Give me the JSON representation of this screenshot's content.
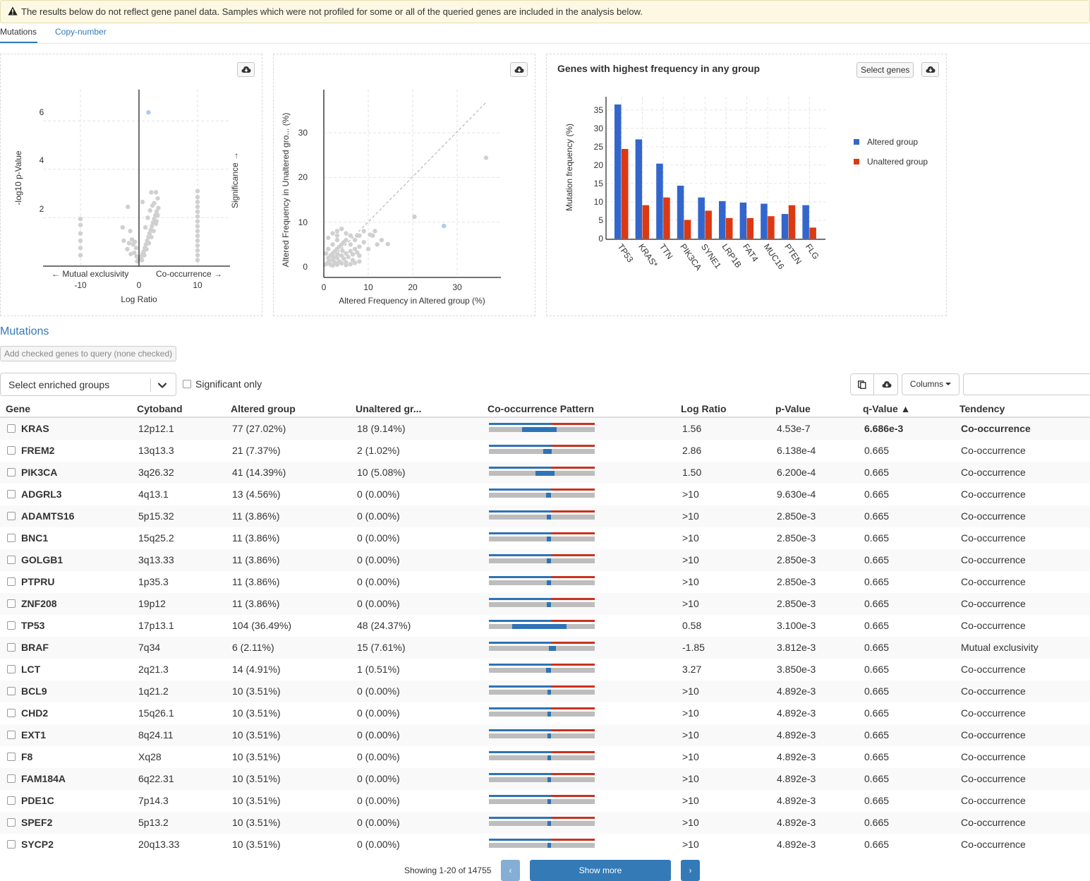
{
  "warning": {
    "text": "The results below do not reflect gene panel data. Samples which were not profiled for some or all of the queried genes are included in the analysis below."
  },
  "tabs": [
    {
      "label": "Mutations",
      "active": true
    },
    {
      "label": "Copy-number",
      "active": false
    }
  ],
  "volcano": {
    "ylabel": "-log10 p-Value",
    "y_ticks": [
      "6",
      "4",
      "2"
    ],
    "x_ticks": [
      "-10",
      "0",
      "10"
    ],
    "xlabel": "Log Ratio",
    "left_annotation": "← Mutual exclusivity",
    "right_annotation": "Co-occurrence →",
    "right_axis_label": "Significance →"
  },
  "scatter": {
    "ylabel": "Altered Frequency in Unaltered gro... (%)",
    "xlabel": "Altered Frequency in Altered group (%)",
    "x_ticks": [
      "0",
      "10",
      "20",
      "30"
    ],
    "y_ticks": [
      "30",
      "20",
      "10",
      "0"
    ]
  },
  "bar_panel": {
    "title": "Genes with highest frequency in any group",
    "select_genes_label": "Select genes"
  },
  "chart_data": [
    {
      "type": "bar",
      "title": "Genes with highest frequency in any group",
      "xlabel": "",
      "ylabel": "Mutation frequency (%)",
      "categories": [
        "TP53",
        "KRAS*",
        "TTN",
        "PIK3CA",
        "SYNE1",
        "LRP1B",
        "FAT4",
        "MUC16",
        "PTEN",
        "FLG"
      ],
      "series": [
        {
          "name": "Altered group",
          "color": "#3366cc",
          "values": [
            36.5,
            27.0,
            20.4,
            14.4,
            11.2,
            10.2,
            9.8,
            9.5,
            6.7,
            9.1
          ]
        },
        {
          "name": "Unaltered group",
          "color": "#dc3912",
          "values": [
            24.4,
            9.1,
            11.2,
            5.1,
            7.6,
            5.6,
            5.6,
            6.1,
            9.1,
            3.0
          ]
        }
      ],
      "y_ticks": [
        0,
        5,
        10,
        15,
        20,
        25,
        30,
        35
      ],
      "ylim": [
        0,
        36.5
      ],
      "legend_position": "right"
    },
    {
      "type": "scatter",
      "ylabel": "-log10 p-Value",
      "xlabel": "Log Ratio",
      "xlim": [
        -20,
        12
      ],
      "ylim": [
        0,
        7
      ],
      "highlight": [
        {
          "x": 1.56,
          "y": 6.35
        }
      ],
      "points": [
        [
          -10,
          1.95
        ],
        [
          -10,
          1.7
        ],
        [
          -10,
          1.35
        ],
        [
          -10,
          1.05
        ],
        [
          -10,
          0.75
        ],
        [
          -10,
          0.45
        ],
        [
          10,
          3.1
        ],
        [
          10,
          2.85
        ],
        [
          10,
          2.65
        ],
        [
          10,
          2.45
        ],
        [
          10,
          2.25
        ],
        [
          10,
          2.05
        ],
        [
          10,
          1.85
        ],
        [
          10,
          1.65
        ],
        [
          10,
          1.45
        ],
        [
          10,
          1.25
        ],
        [
          10,
          1.05
        ],
        [
          10,
          0.85
        ],
        [
          10,
          0.65
        ],
        [
          10,
          0.45
        ],
        [
          10,
          0.25
        ],
        [
          -1.9,
          2.45
        ],
        [
          -1.5,
          1.45
        ],
        [
          -2.8,
          1.6
        ],
        [
          -2.6,
          1.05
        ],
        [
          -1.7,
          0.95
        ],
        [
          -1.2,
          1.1
        ],
        [
          -1.0,
          0.9
        ],
        [
          -0.7,
          1.0
        ],
        [
          -0.5,
          0.75
        ],
        [
          -0.8,
          0.55
        ],
        [
          -0.4,
          0.4
        ],
        [
          -1.4,
          0.5
        ],
        [
          -2.0,
          0.7
        ],
        [
          0.2,
          0.3
        ],
        [
          0.4,
          0.4
        ],
        [
          0.6,
          0.5
        ],
        [
          0.8,
          0.6
        ],
        [
          1.0,
          0.75
        ],
        [
          1.2,
          0.9
        ],
        [
          1.4,
          1.05
        ],
        [
          1.6,
          1.2
        ],
        [
          1.8,
          1.35
        ],
        [
          2.0,
          1.5
        ],
        [
          2.2,
          1.65
        ],
        [
          2.4,
          1.8
        ],
        [
          2.6,
          1.95
        ],
        [
          2.8,
          2.1
        ],
        [
          3.0,
          2.25
        ],
        [
          3.3,
          2.4
        ],
        [
          3.2,
          2.1
        ],
        [
          2.9,
          1.75
        ],
        [
          2.5,
          1.45
        ],
        [
          2.1,
          1.2
        ],
        [
          1.7,
          0.95
        ],
        [
          1.3,
          0.7
        ],
        [
          0.9,
          0.45
        ],
        [
          0.5,
          0.25
        ],
        [
          -0.3,
          0.2
        ],
        [
          -0.1,
          0.25
        ],
        [
          0.6,
          2.65
        ],
        [
          2.1,
          3.05
        ],
        [
          2.9,
          3.05
        ],
        [
          3.2,
          2.8
        ],
        [
          1.5,
          2.0
        ],
        [
          2.6,
          2.6
        ],
        [
          1.9,
          2.3
        ],
        [
          1.1,
          1.6
        ],
        [
          3.0,
          1.85
        ],
        [
          2.3,
          2.5
        ]
      ]
    },
    {
      "type": "scatter",
      "xlabel": "Altered Frequency in Altered group (%)",
      "ylabel": "Altered Frequency in Unaltered gro... (%)",
      "xlim": [
        0,
        40
      ],
      "ylim": [
        0,
        39
      ],
      "highlight": [
        {
          "x": 27.02,
          "y": 9.14
        }
      ],
      "points": [
        [
          0.5,
          0.6
        ],
        [
          1,
          1
        ],
        [
          1.5,
          0.5
        ],
        [
          2,
          1.5
        ],
        [
          2.5,
          1
        ],
        [
          3,
          2
        ],
        [
          3.5,
          1.2
        ],
        [
          4,
          2.5
        ],
        [
          4.5,
          1.8
        ],
        [
          5,
          3
        ],
        [
          5.5,
          2.2
        ],
        [
          6,
          3.5
        ],
        [
          6.5,
          2.8
        ],
        [
          7,
          4
        ],
        [
          7.5,
          3.2
        ],
        [
          8,
          4.5
        ],
        [
          2,
          3
        ],
        [
          3,
          4
        ],
        [
          4,
          5
        ],
        [
          5,
          6
        ],
        [
          1.5,
          2.5
        ],
        [
          2.5,
          3.5
        ],
        [
          3.5,
          4.5
        ],
        [
          4.5,
          5.5
        ],
        [
          6,
          5
        ],
        [
          7,
          6
        ],
        [
          1,
          4
        ],
        [
          2,
          5
        ],
        [
          3,
          6
        ],
        [
          6.5,
          1.5
        ],
        [
          5,
          1
        ],
        [
          8,
          2.5
        ],
        [
          9,
          5.5
        ],
        [
          10,
          4
        ],
        [
          11,
          7
        ],
        [
          9,
          8
        ],
        [
          7.5,
          7
        ],
        [
          1,
          6.5
        ],
        [
          2,
          7.5
        ],
        [
          3,
          8
        ],
        [
          4,
          8.5
        ],
        [
          2,
          0.3
        ],
        [
          3,
          0.5
        ],
        [
          4,
          0.8
        ],
        [
          5,
          0.4
        ],
        [
          6,
          0.6
        ],
        [
          7,
          0.9
        ],
        [
          8,
          1.2
        ],
        [
          10.4,
          7.2
        ],
        [
          11.5,
          8
        ],
        [
          12,
          5
        ],
        [
          13,
          6
        ],
        [
          14.4,
          5.1
        ],
        [
          20.4,
          11.2
        ],
        [
          36.5,
          24.4
        ],
        [
          1,
          2
        ],
        [
          0.5,
          3
        ],
        [
          6,
          7
        ],
        [
          5,
          7.5
        ],
        [
          3,
          7
        ],
        [
          8,
          7
        ],
        [
          1.2,
          1.4
        ],
        [
          2.2,
          2.1
        ],
        [
          3.1,
          2.8
        ],
        [
          4.2,
          3.6
        ]
      ]
    }
  ],
  "table_section": {
    "title": "Mutations",
    "add_button_label": "Add checked genes to query (none checked)",
    "select_placeholder": "Select enriched groups",
    "significant_label": "Significant only",
    "columns_label": "Columns",
    "search_placeholder": ""
  },
  "table": {
    "headers": [
      "Gene",
      "Cytoband",
      "Altered group",
      "Unaltered gr...",
      "Co-occurrence Pattern",
      "Log Ratio",
      "p-Value",
      "q-Value ▲",
      "Tendency"
    ],
    "rows": [
      {
        "gene": "KRAS",
        "cytoband": "12p12.1",
        "altered": "77 (27.02%)",
        "unaltered": "18 (9.14%)",
        "log_ratio": "1.56",
        "p_value": "4.53e-7",
        "q_value": "6.686e-3",
        "tendency": "Co-occurrence",
        "significant": true,
        "pattern": {
          "altered": 0.27,
          "unaltered": 0.09
        }
      },
      {
        "gene": "FREM2",
        "cytoband": "13q13.3",
        "altered": "21 (7.37%)",
        "unaltered": "2 (1.02%)",
        "log_ratio": "2.86",
        "p_value": "6.138e-4",
        "q_value": "0.665",
        "tendency": "Co-occurrence",
        "significant": false,
        "pattern": {
          "altered": 0.074,
          "unaltered": 0.01
        }
      },
      {
        "gene": "PIK3CA",
        "cytoband": "3q26.32",
        "altered": "41 (14.39%)",
        "unaltered": "10 (5.08%)",
        "log_ratio": "1.50",
        "p_value": "6.200e-4",
        "q_value": "0.665",
        "tendency": "Co-occurrence",
        "significant": false,
        "pattern": {
          "altered": 0.144,
          "unaltered": 0.051
        }
      },
      {
        "gene": "ADGRL3",
        "cytoband": "4q13.1",
        "altered": "13 (4.56%)",
        "unaltered": "0 (0.00%)",
        "log_ratio": ">10",
        "p_value": "9.630e-4",
        "q_value": "0.665",
        "tendency": "Co-occurrence",
        "significant": false,
        "pattern": {
          "altered": 0.046,
          "unaltered": 0
        }
      },
      {
        "gene": "ADAMTS16",
        "cytoband": "5p15.32",
        "altered": "11 (3.86%)",
        "unaltered": "0 (0.00%)",
        "log_ratio": ">10",
        "p_value": "2.850e-3",
        "q_value": "0.665",
        "tendency": "Co-occurrence",
        "significant": false,
        "pattern": {
          "altered": 0.039,
          "unaltered": 0
        }
      },
      {
        "gene": "BNC1",
        "cytoband": "15q25.2",
        "altered": "11 (3.86%)",
        "unaltered": "0 (0.00%)",
        "log_ratio": ">10",
        "p_value": "2.850e-3",
        "q_value": "0.665",
        "tendency": "Co-occurrence",
        "significant": false,
        "pattern": {
          "altered": 0.039,
          "unaltered": 0
        }
      },
      {
        "gene": "GOLGB1",
        "cytoband": "3q13.33",
        "altered": "11 (3.86%)",
        "unaltered": "0 (0.00%)",
        "log_ratio": ">10",
        "p_value": "2.850e-3",
        "q_value": "0.665",
        "tendency": "Co-occurrence",
        "significant": false,
        "pattern": {
          "altered": 0.039,
          "unaltered": 0
        }
      },
      {
        "gene": "PTPRU",
        "cytoband": "1p35.3",
        "altered": "11 (3.86%)",
        "unaltered": "0 (0.00%)",
        "log_ratio": ">10",
        "p_value": "2.850e-3",
        "q_value": "0.665",
        "tendency": "Co-occurrence",
        "significant": false,
        "pattern": {
          "altered": 0.039,
          "unaltered": 0
        }
      },
      {
        "gene": "ZNF208",
        "cytoband": "19p12",
        "altered": "11 (3.86%)",
        "unaltered": "0 (0.00%)",
        "log_ratio": ">10",
        "p_value": "2.850e-3",
        "q_value": "0.665",
        "tendency": "Co-occurrence",
        "significant": false,
        "pattern": {
          "altered": 0.039,
          "unaltered": 0
        }
      },
      {
        "gene": "TP53",
        "cytoband": "17p13.1",
        "altered": "104 (36.49%)",
        "unaltered": "48 (24.37%)",
        "log_ratio": "0.58",
        "p_value": "3.100e-3",
        "q_value": "0.665",
        "tendency": "Co-occurrence",
        "significant": false,
        "pattern": {
          "altered": 0.365,
          "unaltered": 0.244
        }
      },
      {
        "gene": "BRAF",
        "cytoband": "7q34",
        "altered": "6 (2.11%)",
        "unaltered": "15 (7.61%)",
        "log_ratio": "-1.85",
        "p_value": "3.812e-3",
        "q_value": "0.665",
        "tendency": "Mutual exclusivity",
        "significant": false,
        "pattern": {
          "altered": 0.021,
          "unaltered": 0.076
        }
      },
      {
        "gene": "LCT",
        "cytoband": "2q21.3",
        "altered": "14 (4.91%)",
        "unaltered": "1 (0.51%)",
        "log_ratio": "3.27",
        "p_value": "3.850e-3",
        "q_value": "0.665",
        "tendency": "Co-occurrence",
        "significant": false,
        "pattern": {
          "altered": 0.049,
          "unaltered": 0.005
        }
      },
      {
        "gene": "BCL9",
        "cytoband": "1q21.2",
        "altered": "10 (3.51%)",
        "unaltered": "0 (0.00%)",
        "log_ratio": ">10",
        "p_value": "4.892e-3",
        "q_value": "0.665",
        "tendency": "Co-occurrence",
        "significant": false,
        "pattern": {
          "altered": 0.035,
          "unaltered": 0
        }
      },
      {
        "gene": "CHD2",
        "cytoband": "15q26.1",
        "altered": "10 (3.51%)",
        "unaltered": "0 (0.00%)",
        "log_ratio": ">10",
        "p_value": "4.892e-3",
        "q_value": "0.665",
        "tendency": "Co-occurrence",
        "significant": false,
        "pattern": {
          "altered": 0.035,
          "unaltered": 0
        }
      },
      {
        "gene": "EXT1",
        "cytoband": "8q24.11",
        "altered": "10 (3.51%)",
        "unaltered": "0 (0.00%)",
        "log_ratio": ">10",
        "p_value": "4.892e-3",
        "q_value": "0.665",
        "tendency": "Co-occurrence",
        "significant": false,
        "pattern": {
          "altered": 0.035,
          "unaltered": 0
        }
      },
      {
        "gene": "F8",
        "cytoband": "Xq28",
        "altered": "10 (3.51%)",
        "unaltered": "0 (0.00%)",
        "log_ratio": ">10",
        "p_value": "4.892e-3",
        "q_value": "0.665",
        "tendency": "Co-occurrence",
        "significant": false,
        "pattern": {
          "altered": 0.035,
          "unaltered": 0
        }
      },
      {
        "gene": "FAM184A",
        "cytoband": "6q22.31",
        "altered": "10 (3.51%)",
        "unaltered": "0 (0.00%)",
        "log_ratio": ">10",
        "p_value": "4.892e-3",
        "q_value": "0.665",
        "tendency": "Co-occurrence",
        "significant": false,
        "pattern": {
          "altered": 0.035,
          "unaltered": 0
        }
      },
      {
        "gene": "PDE1C",
        "cytoband": "7p14.3",
        "altered": "10 (3.51%)",
        "unaltered": "0 (0.00%)",
        "log_ratio": ">10",
        "p_value": "4.892e-3",
        "q_value": "0.665",
        "tendency": "Co-occurrence",
        "significant": false,
        "pattern": {
          "altered": 0.035,
          "unaltered": 0
        }
      },
      {
        "gene": "SPEF2",
        "cytoband": "5p13.2",
        "altered": "10 (3.51%)",
        "unaltered": "0 (0.00%)",
        "log_ratio": ">10",
        "p_value": "4.892e-3",
        "q_value": "0.665",
        "tendency": "Co-occurrence",
        "significant": false,
        "pattern": {
          "altered": 0.035,
          "unaltered": 0
        }
      },
      {
        "gene": "SYCP2",
        "cytoband": "20q13.33",
        "altered": "10 (3.51%)",
        "unaltered": "0 (0.00%)",
        "log_ratio": ">10",
        "p_value": "4.892e-3",
        "q_value": "0.665",
        "tendency": "Co-occurrence",
        "significant": false,
        "pattern": {
          "altered": 0.035,
          "unaltered": 0
        }
      }
    ]
  },
  "footer": {
    "showing_text": "Showing 1-20 of 14755",
    "show_more_label": "Show more",
    "prev_label": "‹",
    "next_label": "›"
  },
  "colors": {
    "altered": "#3366cc",
    "unaltered": "#dc3912",
    "pattern_blue": "#2f73b6",
    "pattern_red": "#c9321f",
    "pattern_grey": "#bdbdbd",
    "highlight_point": "#a9ccf3",
    "point": "#d0d0d0"
  },
  "icons": {
    "warning": "warning-triangle-icon",
    "download": "cloud-download-icon",
    "copy": "clipboard-icon",
    "chevron": "chevron-down-icon"
  }
}
